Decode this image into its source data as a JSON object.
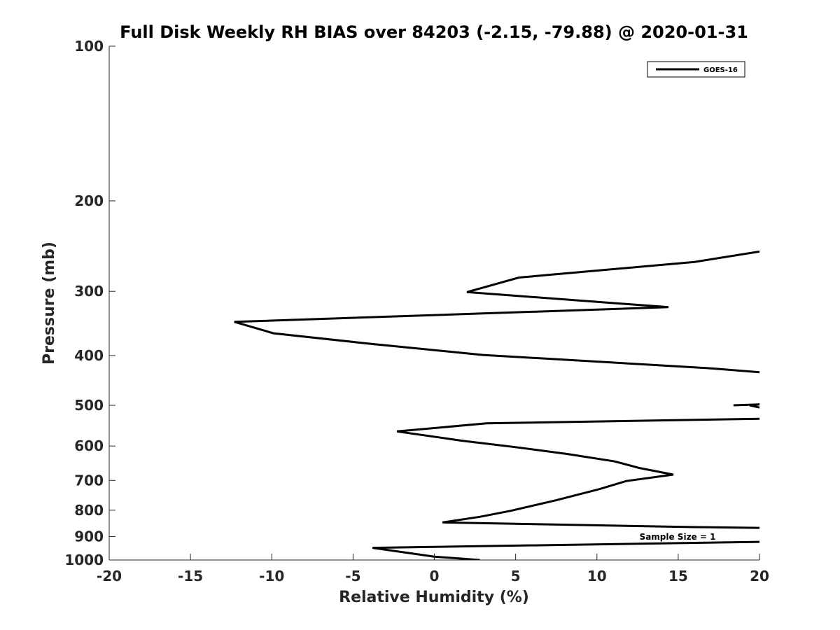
{
  "chart_data": {
    "type": "line",
    "title": "Full Disk Weekly RH BIAS over 84203 (-2.15, -79.88) @ 2020-01-31",
    "xlabel": "Relative Humidity (%)",
    "ylabel": "Pressure (mb)",
    "xlim": [
      -20,
      20
    ],
    "ylim": [
      100,
      1000
    ],
    "yscale": "log",
    "y_reversed": true,
    "x_ticks": [
      "-20",
      "-15",
      "-10",
      "-5",
      "0",
      "5",
      "10",
      "15",
      "20"
    ],
    "y_ticks": [
      "100",
      "200",
      "300",
      "400",
      "500",
      "600",
      "700",
      "800",
      "900",
      "1000"
    ],
    "grid": false,
    "legend_position": "top-right",
    "annotation": "Sample Size = 1",
    "series": [
      {
        "name": "GOES-16",
        "color": "#000000",
        "segments": [
          [
            [
              2.8,
              1000
            ],
            [
              0.0,
              985
            ],
            [
              -3.8,
              947
            ],
            [
              20,
              922
            ]
          ],
          [
            [
              20,
              866
            ],
            [
              16,
              863
            ],
            [
              0.5,
              845
            ],
            [
              2.8,
              824
            ],
            [
              4.7,
              802
            ],
            [
              7.5,
              765
            ],
            [
              10.2,
              727
            ],
            [
              11.8,
              702
            ],
            [
              14.7,
              682
            ],
            [
              12.6,
              662
            ],
            [
              11.1,
              643
            ],
            [
              8.2,
              622
            ],
            [
              5.0,
              603
            ],
            [
              1.7,
              586
            ],
            [
              -2.3,
              562
            ],
            [
              3.2,
              542
            ],
            [
              20,
              531
            ]
          ],
          [
            [
              18.4,
              500
            ],
            [
              20,
              498
            ],
            [
              19.4,
              500
            ],
            [
              20,
              505
            ]
          ],
          [
            [
              20,
              431
            ],
            [
              16.7,
              423
            ],
            [
              3.0,
              399
            ],
            [
              -4.1,
              379
            ],
            [
              -9.9,
              362
            ],
            [
              -12.3,
              344
            ],
            [
              14.4,
              322
            ],
            [
              2.0,
              301
            ],
            [
              5.2,
              282
            ],
            [
              16.0,
              263
            ],
            [
              20,
              251
            ]
          ]
        ]
      }
    ]
  }
}
